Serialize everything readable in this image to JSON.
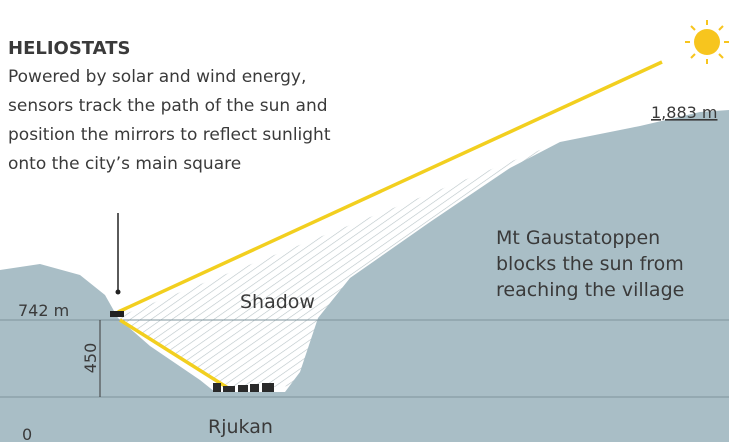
{
  "title": "HELIOSTATS",
  "description": [
    "Powered by solar and wind energy,",
    "sensors track the path of the sun and",
    "position the mirrors to reflect sunlight",
    "onto the city’s main square"
  ],
  "labels": {
    "peak_height": "1,883 m",
    "heliostat_height": "742 m",
    "height_difference": "450",
    "base": "0",
    "shadow": "Shadow",
    "town": "Rjukan"
  },
  "mountain": {
    "name": "Mt Gaustatoppen",
    "note": [
      "blocks the sun from",
      "reaching the village"
    ]
  }
}
